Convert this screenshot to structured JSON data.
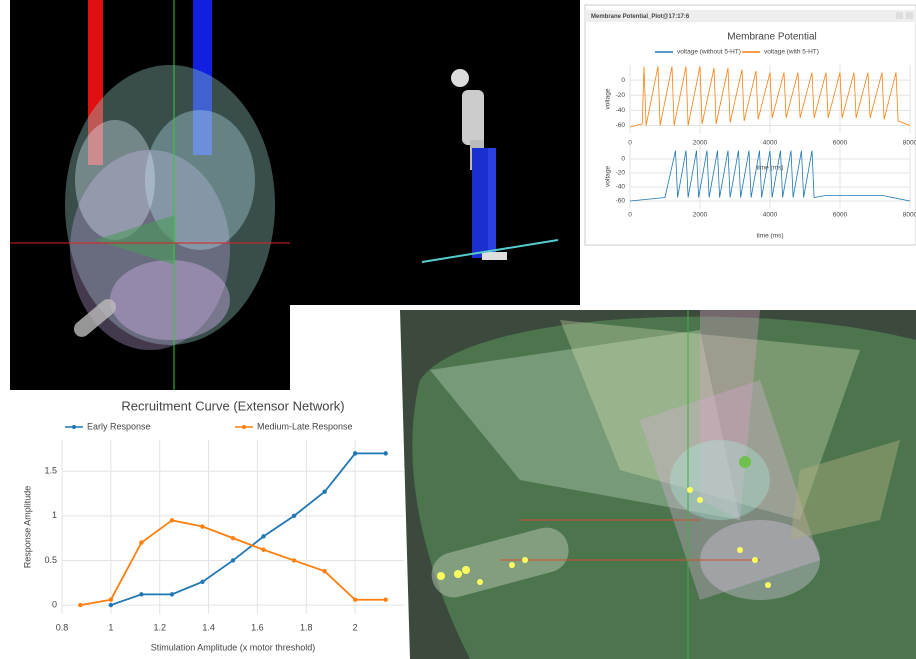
{
  "window_title": "Membrane Potential_Plot@17:17:6",
  "chart_data": [
    {
      "type": "line",
      "title": "Recruitment Curve (Extensor Network)",
      "x_label": "Stimulation Amplitude (x motor threshold)",
      "y_label": "Response Amplitude",
      "x": [
        0.875,
        1,
        1.125,
        1.25,
        1.375,
        1.5,
        1.625,
        1.75,
        1.875,
        2,
        2.125
      ],
      "series": [
        {
          "name": "Early Response",
          "color": "#1f77b4",
          "values": [
            null,
            0,
            0.12,
            0.12,
            0.26,
            0.5,
            0.77,
            1.0,
            1.27,
            1.7,
            1.7
          ]
        },
        {
          "name": "Medium-Late Response",
          "color": "#ff7f0e",
          "values": [
            0,
            0.06,
            0.7,
            0.95,
            0.88,
            0.75,
            0.62,
            0.5,
            0.38,
            0.06,
            0.06
          ]
        }
      ],
      "xlim": [
        0.8,
        2.2
      ],
      "ylim": [
        -0.1,
        1.85
      ],
      "xticks": [
        0.8,
        1,
        1.2,
        1.4,
        1.6,
        1.8,
        2
      ],
      "yticks": [
        0,
        0.5,
        1,
        1.5
      ],
      "grid": true,
      "markers": true
    },
    {
      "type": "line",
      "title": "Membrane Potential",
      "x_label": "time (ms)",
      "y_label": "voltage",
      "x": [
        0,
        350,
        400,
        460,
        800,
        860,
        1200,
        1260,
        1600,
        1660,
        2000,
        2060,
        2400,
        2460,
        2800,
        2860,
        3200,
        3260,
        3600,
        3660,
        4000,
        4060,
        4400,
        4460,
        4800,
        4860,
        5200,
        5260,
        5600,
        5660,
        6000,
        6060,
        6400,
        6460,
        6800,
        6860,
        7200,
        7260,
        7600,
        7660,
        8000
      ],
      "series": [
        {
          "name": "voltage (with 5-HT)",
          "color": "#ff7f0e",
          "values": [
            -62,
            -58,
            18,
            -60,
            18,
            -60,
            18,
            -60,
            18,
            -60,
            18,
            -58,
            16,
            -58,
            16,
            -56,
            14,
            -54,
            12,
            -52,
            10,
            -50,
            10,
            -50,
            10,
            -50,
            10,
            -50,
            10,
            -50,
            10,
            -50,
            10,
            -50,
            10,
            -50,
            10,
            -52,
            10,
            -54,
            -60
          ]
        }
      ],
      "xlim": [
        0,
        8000
      ],
      "ylim": [
        -70,
        20
      ],
      "xticks": [
        0,
        2000,
        4000,
        6000,
        8000
      ],
      "yticks": [
        0,
        -20,
        -40,
        -60
      ],
      "grid": true,
      "markers": false
    },
    {
      "type": "line",
      "x_label": "time (ms)",
      "y_label": "voltage",
      "x": [
        0,
        1000,
        1300,
        1360,
        1600,
        1660,
        1900,
        1960,
        2200,
        2260,
        2500,
        2560,
        2800,
        2860,
        3100,
        3160,
        3400,
        3460,
        3700,
        3760,
        4000,
        4060,
        4300,
        4360,
        4600,
        4660,
        4900,
        4960,
        5200,
        5260,
        5600,
        7200,
        8000
      ],
      "series": [
        {
          "name": "voltage (without 5-HT)",
          "color": "#1f77b4",
          "values": [
            -60,
            -55,
            12,
            -55,
            12,
            -55,
            12,
            -55,
            12,
            -55,
            12,
            -55,
            12,
            -55,
            12,
            -55,
            12,
            -55,
            12,
            -55,
            12,
            -55,
            12,
            -55,
            12,
            -55,
            12,
            -55,
            12,
            -55,
            -52,
            -52,
            -60
          ]
        }
      ],
      "xlim": [
        0,
        8000
      ],
      "ylim": [
        -70,
        20
      ],
      "xticks": [
        0,
        2000,
        4000,
        6000,
        8000
      ],
      "yticks": [
        0,
        -20,
        -40,
        -60
      ],
      "grid": true,
      "markers": false
    }
  ]
}
